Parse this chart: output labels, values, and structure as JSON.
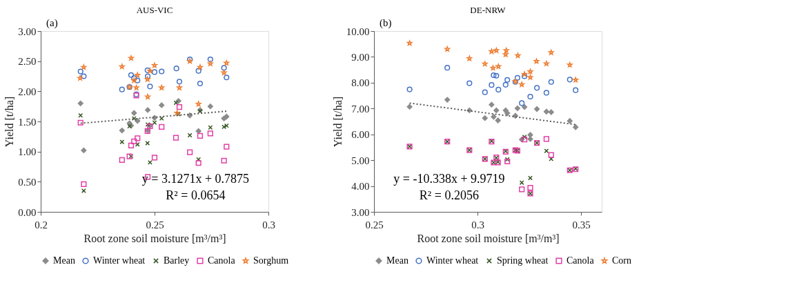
{
  "chart_data": [
    {
      "type": "scatter",
      "title": "AUS-VIC",
      "xlabel": "Root zone soil moisture [m³/m³]",
      "ylabel": "Yield [t/ha]",
      "annotations": [
        "(a)",
        "y = 3.1271x + 0.7875",
        "R² = 0.0654"
      ],
      "xlim": [
        0.2,
        0.3
      ],
      "xticks": [
        0.2,
        0.25,
        0.3
      ],
      "ylim": [
        0,
        3
      ],
      "yticks": [
        {
          "value": 0,
          "label": "0.00"
        },
        {
          "value": 0.5,
          "label": "0.50"
        },
        {
          "value": 1,
          "label": "1.00"
        },
        {
          "value": 1.5,
          "label": "1.50"
        },
        {
          "value": 2,
          "label": "2.00"
        },
        {
          "value": 2.5,
          "label": "2.50"
        },
        {
          "value": 3,
          "label": "3.00"
        }
      ],
      "legend": "bottom",
      "series": [
        {
          "name": "Mean",
          "color": "#8c8c8c",
          "marker": "diamond",
          "x": [
            0.2175,
            0.2189,
            0.2357,
            0.239,
            0.2397,
            0.241,
            0.2425,
            0.247,
            0.247,
            0.248,
            0.25,
            0.2531,
            0.2605,
            0.2655,
            0.27,
            0.2745,
            0.2693,
            0.2805,
            0.2816
          ],
          "values": [
            1.8,
            1.02,
            1.35,
            1.47,
            1.43,
            1.64,
            1.51,
            1.69,
            1.35,
            1.43,
            1.56,
            1.77,
            1.84,
            1.6,
            1.69,
            1.75,
            1.34,
            1.55,
            1.58
          ]
        },
        {
          "name": "Winter wheat",
          "color": "#4472c4",
          "marker": "circle",
          "x": [
            0.2175,
            0.2189,
            0.2357,
            0.239,
            0.2397,
            0.241,
            0.2425,
            0.242,
            0.2469,
            0.247,
            0.248,
            0.25,
            0.2531,
            0.2596,
            0.2609,
            0.2655,
            0.2693,
            0.27,
            0.2745,
            0.2805,
            0.2816
          ],
          "values": [
            2.33,
            2.25,
            2.03,
            2.07,
            2.27,
            2.22,
            2.18,
            1.95,
            2.35,
            2.25,
            2.08,
            2.32,
            2.33,
            2.38,
            2.16,
            2.53,
            2.34,
            2.13,
            2.53,
            2.39,
            2.23
          ]
        },
        {
          "name": "Barley",
          "color": "#375623",
          "marker": "cross",
          "x": [
            0.2175,
            0.2189,
            0.2357,
            0.239,
            0.2397,
            0.241,
            0.2425,
            0.2469,
            0.247,
            0.248,
            0.25,
            0.2531,
            0.2594,
            0.2605,
            0.2655,
            0.27,
            0.2693,
            0.2745,
            0.2805,
            0.2816
          ],
          "values": [
            1.6,
            0.35,
            1.16,
            1.42,
            0.92,
            1.55,
            1.12,
            1.14,
            1.45,
            0.82,
            1.48,
            1.55,
            1.81,
            1.62,
            1.27,
            1.67,
            0.87,
            1.4,
            1.41,
            1.43
          ]
        },
        {
          "name": "Canola",
          "color": "#e33fa6",
          "marker": "square",
          "x": [
            0.2175,
            0.2189,
            0.2357,
            0.239,
            0.2397,
            0.241,
            0.2425,
            0.242,
            0.2469,
            0.247,
            0.248,
            0.25,
            0.2531,
            0.2594,
            0.2609,
            0.2655,
            0.27,
            0.2693,
            0.2745,
            0.2805,
            0.2816
          ],
          "values": [
            1.48,
            0.46,
            0.86,
            0.92,
            1.1,
            1.17,
            1.22,
            1.93,
            1.34,
            0.58,
            1.42,
            0.9,
            1.41,
            1.23,
            1.74,
            0.99,
            1.26,
            0.81,
            1.3,
            0.85,
            1.08
          ]
        },
        {
          "name": "Sorghum",
          "color": "#ed7d31",
          "marker": "star",
          "x": [
            0.2189,
            0.2173,
            0.2357,
            0.2397,
            0.239,
            0.241,
            0.242,
            0.2425,
            0.2469,
            0.247,
            0.248,
            0.25,
            0.2531,
            0.2599,
            0.2609,
            0.2655,
            0.27,
            0.2693,
            0.2745,
            0.2805,
            0.2816
          ],
          "values": [
            2.4,
            2.22,
            2.41,
            2.55,
            2.07,
            2.18,
            2.06,
            2.27,
            2.2,
            1.91,
            2.34,
            2.43,
            2.06,
            1.64,
            2.06,
            2.5,
            2.4,
            1.79,
            2.46,
            2.31,
            2.47
          ]
        },
        {
          "type": "line",
          "color": "#595959",
          "line_style": "dotted",
          "marker": "none",
          "x": [
            0.2175,
            0.2816
          ],
          "values": [
            1.47,
            1.67
          ]
        }
      ]
    },
    {
      "type": "scatter",
      "title": "DE-NRW",
      "xlabel": "Root zone soil moisture [m³/m³]",
      "ylabel": "Yield [t/ha]",
      "annotations": [
        "(b)",
        "y = -10.338x + 9.9719",
        "R² = 0.2056"
      ],
      "xlim": [
        0.25,
        0.36
      ],
      "xticks": [
        0.25,
        0.3,
        0.35
      ],
      "ylim": [
        3,
        10
      ],
      "yticks": [
        {
          "value": 3,
          "label": "3.00"
        },
        {
          "value": 4,
          "label": "4.00"
        },
        {
          "value": 5,
          "label": "5.00"
        },
        {
          "value": 6,
          "label": "6.00"
        },
        {
          "value": 7,
          "label": "7.00"
        },
        {
          "value": 8,
          "label": "8.00"
        },
        {
          "value": 9,
          "label": "9.00"
        },
        {
          "value": 10,
          "label": "10.00"
        }
      ],
      "legend": "bottom",
      "series": [
        {
          "name": "Mean",
          "color": "#8c8c8c",
          "marker": "diamond",
          "x": [
            0.2672,
            0.2854,
            0.2961,
            0.3036,
            0.3068,
            0.3078,
            0.3091,
            0.3099,
            0.3136,
            0.3144,
            0.3183,
            0.3193,
            0.3227,
            0.3287,
            0.3333,
            0.3356,
            0.3446,
            0.3474,
            0.3214,
            0.3255,
            0.3255
          ],
          "values": [
            7.07,
            7.34,
            6.93,
            6.63,
            7.15,
            6.68,
            6.93,
            6.54,
            6.93,
            6.82,
            6.72,
            7.01,
            7.06,
            6.98,
            6.88,
            6.86,
            6.52,
            6.28,
            5.8,
            5.98,
            5.82
          ]
        },
        {
          "name": "Winter wheat",
          "color": "#4472c4",
          "marker": "circle",
          "x": [
            0.2672,
            0.2854,
            0.2961,
            0.3036,
            0.3068,
            0.3078,
            0.3091,
            0.3101,
            0.3136,
            0.3144,
            0.3183,
            0.3193,
            0.3227,
            0.3255,
            0.3287,
            0.3214,
            0.3333,
            0.3356,
            0.3446,
            0.3474
          ],
          "values": [
            7.74,
            8.58,
            7.98,
            7.63,
            7.91,
            8.29,
            8.27,
            7.73,
            7.92,
            8.11,
            8.03,
            8.19,
            8.25,
            7.46,
            7.8,
            7.21,
            7.61,
            8.03,
            8.12,
            7.71
          ]
        },
        {
          "name": "Spring wheat",
          "color": "#375623",
          "marker": "cross",
          "x": [
            0.2672,
            0.2854,
            0.2961,
            0.3036,
            0.3068,
            0.3078,
            0.3099,
            0.3091,
            0.3136,
            0.3144,
            0.3183,
            0.3193,
            0.3227,
            0.3287,
            0.3333,
            0.3356,
            0.3446,
            0.3474,
            0.3214,
            0.3255,
            0.3255
          ],
          "values": [
            5.53,
            5.72,
            5.39,
            5.05,
            5.74,
            4.91,
            4.93,
            5.09,
            5.35,
            5.03,
            5.39,
            5.37,
            5.9,
            5.67,
            5.36,
            5.05,
            4.61,
            4.67,
            4.13,
            4.31,
            3.71
          ]
        },
        {
          "name": "Canola",
          "color": "#e33fa6",
          "marker": "square",
          "x": [
            0.2672,
            0.2854,
            0.2961,
            0.3036,
            0.3068,
            0.3078,
            0.3099,
            0.3091,
            0.3136,
            0.3144,
            0.3183,
            0.3193,
            0.3227,
            0.3287,
            0.3333,
            0.3356,
            0.3446,
            0.3474,
            0.3214,
            0.3255,
            0.3255
          ],
          "values": [
            5.53,
            5.72,
            5.39,
            5.05,
            5.72,
            4.91,
            4.91,
            5.11,
            5.33,
            4.95,
            5.39,
            5.37,
            5.8,
            5.67,
            5.82,
            5.2,
            4.61,
            4.65,
            3.87,
            3.93,
            3.71
          ]
        },
        {
          "name": "Corn",
          "color": "#ed7d31",
          "marker": "star",
          "x": [
            0.2672,
            0.2854,
            0.2961,
            0.3036,
            0.3068,
            0.3091,
            0.3139,
            0.3136,
            0.3195,
            0.3075,
            0.3101,
            0.3227,
            0.3255,
            0.3255,
            0.3214,
            0.3183,
            0.3285,
            0.3333,
            0.3356,
            0.3446,
            0.3474
          ],
          "values": [
            9.53,
            9.3,
            8.94,
            8.73,
            9.21,
            9.25,
            9.25,
            9.09,
            9.05,
            8.57,
            8.63,
            8.33,
            8.43,
            8.21,
            7.93,
            8.05,
            8.83,
            8.74,
            9.17,
            8.69,
            8.11
          ]
        },
        {
          "type": "line",
          "color": "#595959",
          "line_style": "dotted",
          "marker": "none",
          "x": [
            0.2672,
            0.3474
          ],
          "values": [
            7.21,
            6.38
          ]
        }
      ]
    }
  ]
}
